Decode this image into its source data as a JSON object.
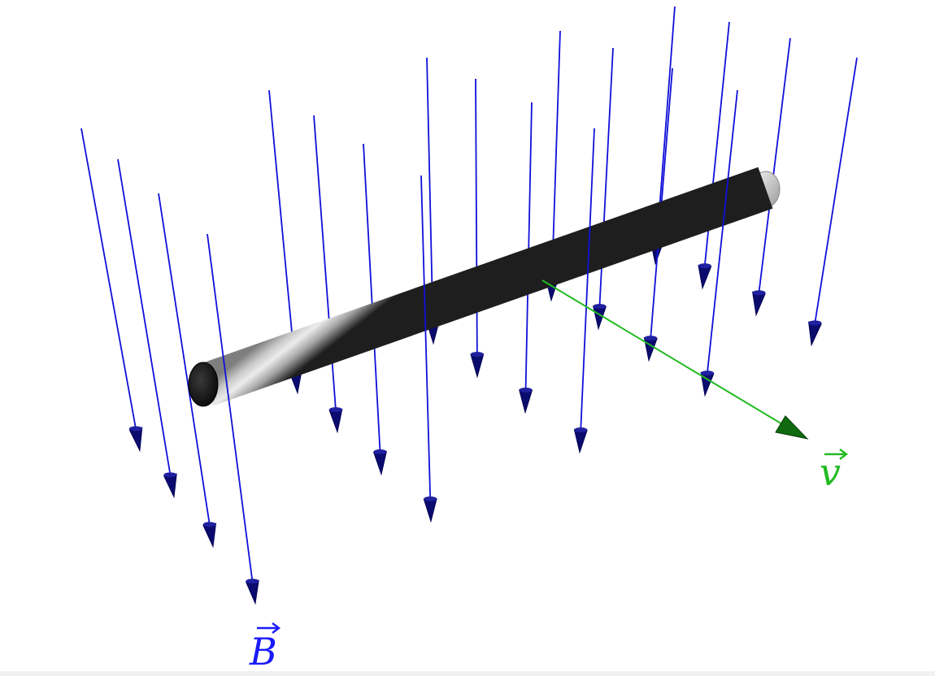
{
  "figure": {
    "field_label": "B",
    "velocity_label": "v",
    "colors": {
      "field": "#1010d8",
      "field_head": "#0b0b6e",
      "velocity": "#22bb22",
      "rod_light": "#e6e6e6",
      "rod_dark": "#1e1e1e"
    }
  }
}
